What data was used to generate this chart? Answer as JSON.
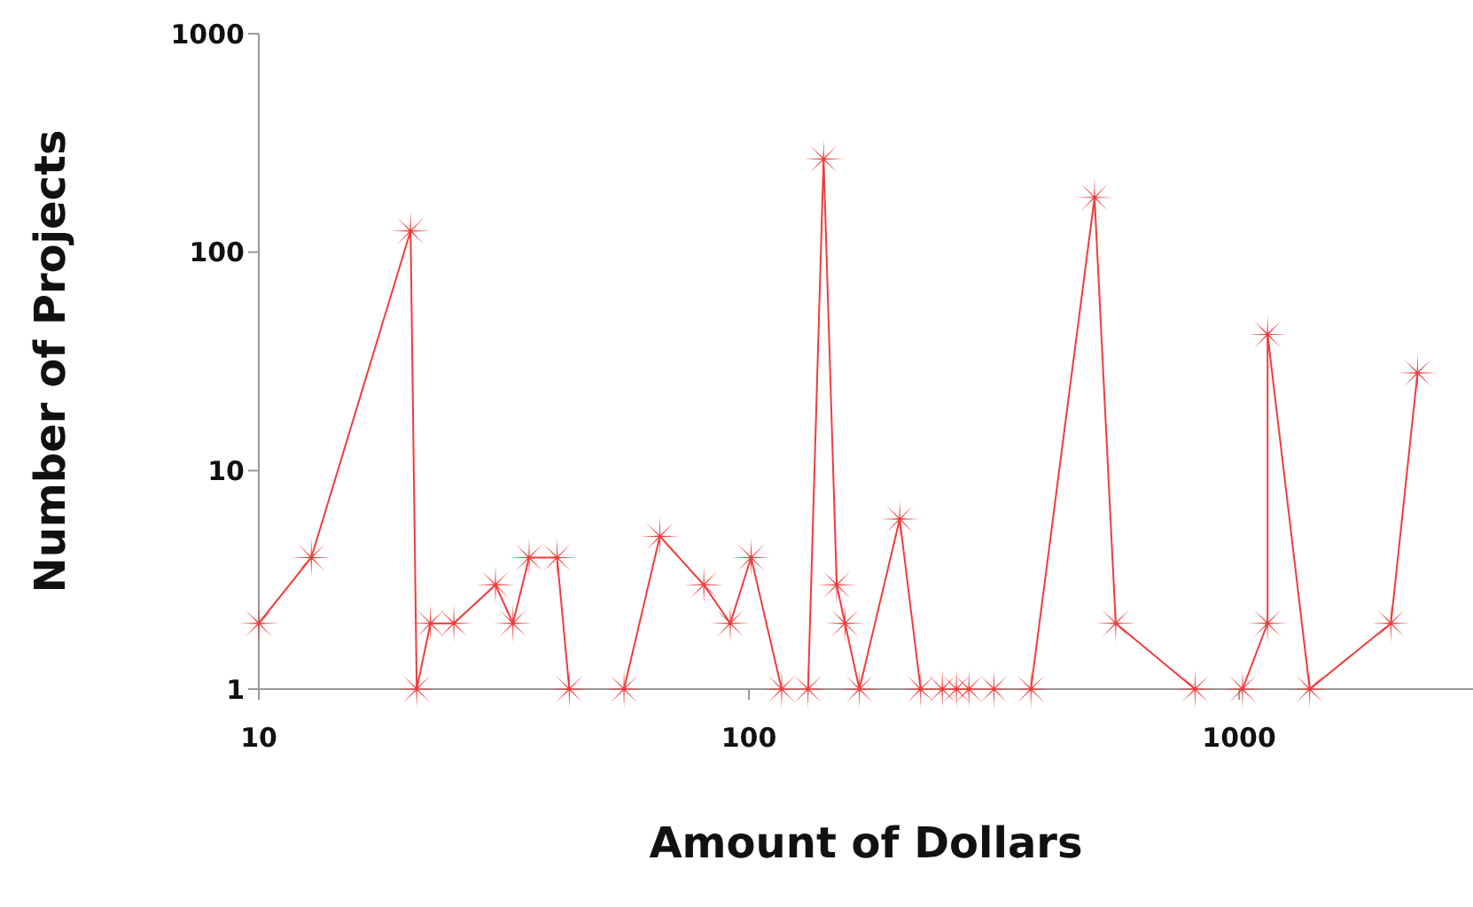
{
  "chart_data": {
    "type": "line",
    "xlabel": "Amount of Dollars",
    "ylabel": "Number of Projects",
    "log": "xy",
    "xlim": [
      10,
      3000
    ],
    "xticks": [
      10,
      100,
      1000
    ],
    "ylim": [
      1,
      1000
    ],
    "yticks": [
      1,
      10,
      100,
      1000
    ],
    "grid": false,
    "legend": false,
    "marker": "star",
    "line_style": "solid",
    "series": [
      {
        "color": "#f03c3c",
        "x": [
          10,
          12.8,
          20.4,
          21,
          22.4,
          25,
          30.4,
          33,
          35.6,
          40.6,
          43,
          55.6,
          65.8,
          80.9,
          91.6,
          101,
          116.6,
          132,
          142,
          151,
          157,
          168,
          203,
          224,
          248,
          265,
          281,
          316,
          376,
          507,
          560,
          813,
          1016,
          1143,
          1143,
          1393,
          2040,
          2312
        ],
        "values": [
          2,
          4,
          125,
          1,
          2,
          2,
          3,
          2,
          4,
          4,
          1,
          1,
          5,
          3,
          2,
          4,
          1,
          1,
          267,
          3,
          2,
          1,
          6,
          1,
          1,
          1,
          1,
          1,
          1,
          178,
          2,
          1,
          1,
          2,
          42,
          1,
          2,
          28
        ]
      }
    ]
  }
}
